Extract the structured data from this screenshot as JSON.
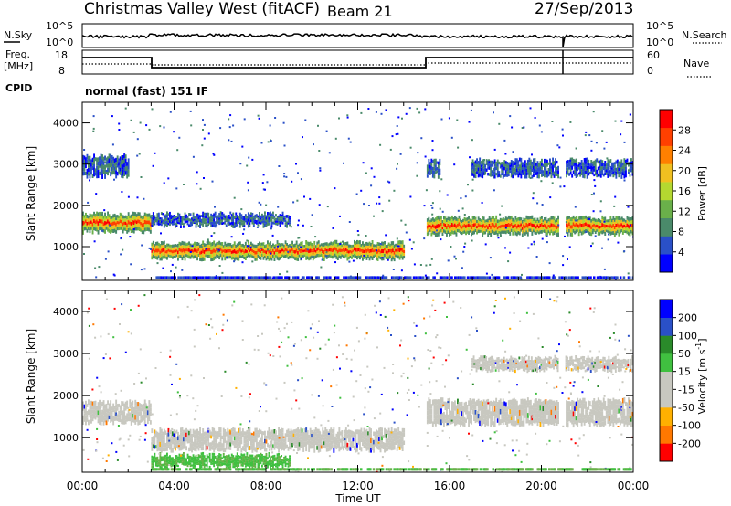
{
  "header": {
    "station": "Christmas Valley West (fitACF)",
    "beam": "Beam 21",
    "date": "27/Sep/2013"
  },
  "panels": {
    "nsky_label": "N.Sky",
    "nsky_ticks": [
      "10^5",
      "10^0"
    ],
    "nsearch_label": "N.Search",
    "nsearch_ticks": [
      "10^5",
      "10^0"
    ],
    "freq_label_1": "Freq.",
    "freq_label_2": "[MHz]",
    "freq_ticks": [
      "18",
      "8"
    ],
    "nave_label": "Nave",
    "nave_ticks": [
      "60",
      "0"
    ],
    "cpid_label": "CPID",
    "cpid_value": "normal (fast) 151 IF"
  },
  "colors": {
    "power_scale": [
      "#0000ff",
      "#2a50c8",
      "#4a8a6a",
      "#6ab04a",
      "#b4d830",
      "#f0c020",
      "#ff8000",
      "#ff4000",
      "#ff0000"
    ],
    "velocity_scale": [
      "#ff0000",
      "#ff7800",
      "#ffb000",
      "#c8c8c0",
      "#c8c8c0",
      "#40c040",
      "#2a8a2a",
      "#2a50c8",
      "#0000ff"
    ],
    "ground_scatter": "#c8c8c0"
  },
  "chart_data": [
    {
      "type": "heatmap",
      "title": "Power",
      "ylabel": "Slant Range [km]",
      "xlabel": "",
      "x_ticks": [
        "00:00",
        "04:00",
        "08:00",
        "12:00",
        "16:00",
        "20:00",
        "00:00"
      ],
      "y_ticks": [
        "1000",
        "2000",
        "3000",
        "4000"
      ],
      "ylim": [
        180,
        4500
      ],
      "xlim_hours": [
        0,
        24
      ],
      "colorbar_label": "Power [dB]",
      "colorbar_ticks": [
        "4",
        "8",
        "12",
        "16",
        "20",
        "24",
        "28"
      ],
      "bands": [
        {
          "x": [
            0,
            3
          ],
          "range": [
            1350,
            1800
          ],
          "level": "high"
        },
        {
          "x": [
            3,
            9
          ],
          "range": [
            1500,
            1800
          ],
          "level": "low"
        },
        {
          "x": [
            3,
            14
          ],
          "range": [
            700,
            1100
          ],
          "level": "high"
        },
        {
          "x": [
            15,
            24
          ],
          "range": [
            1300,
            1700
          ],
          "level": "high"
        },
        {
          "x": [
            15,
            24
          ],
          "range": [
            2700,
            3100
          ],
          "level": "low"
        },
        {
          "x": [
            0,
            2
          ],
          "range": [
            2700,
            3200
          ],
          "level": "low"
        }
      ]
    },
    {
      "type": "heatmap",
      "title": "Velocity",
      "ylabel": "Slant Range [km]",
      "xlabel": "Time UT",
      "x_ticks": [
        "00:00",
        "04:00",
        "08:00",
        "12:00",
        "16:00",
        "20:00",
        "00:00"
      ],
      "y_ticks": [
        "1000",
        "2000",
        "3000",
        "4000"
      ],
      "ylim": [
        180,
        4500
      ],
      "xlim_hours": [
        0,
        24
      ],
      "colorbar_label": "Velocity [m s",
      "colorbar_label_sup": "-1",
      "colorbar_label_end": "]",
      "colorbar_ticks": [
        "200",
        "100",
        "50",
        "15",
        "-15",
        "-50",
        "-100",
        "-200"
      ],
      "bands": [
        {
          "x": [
            0,
            3
          ],
          "range": [
            1350,
            1850
          ],
          "level": "ground"
        },
        {
          "x": [
            3,
            14
          ],
          "range": [
            700,
            1200
          ],
          "level": "ground"
        },
        {
          "x": [
            3,
            9
          ],
          "range": [
            300,
            600
          ],
          "level": "green"
        },
        {
          "x": [
            15,
            24
          ],
          "range": [
            1300,
            1900
          ],
          "level": "ground"
        },
        {
          "x": [
            16,
            24
          ],
          "range": [
            2600,
            2900
          ],
          "level": "ground"
        }
      ]
    }
  ]
}
